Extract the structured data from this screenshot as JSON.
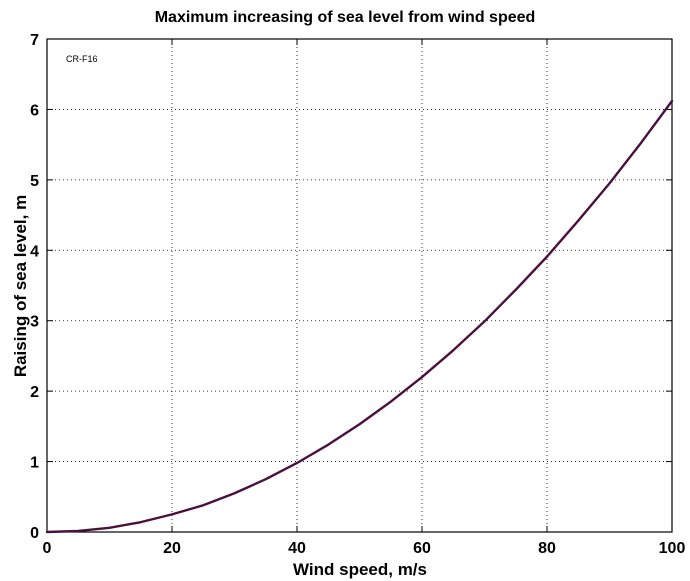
{
  "chart_data": {
    "type": "line",
    "title": "Maximum increasing of sea level from wind speed",
    "xlabel": "Wind speed, m/s",
    "ylabel": "Raising of sea level, m",
    "annotation": "CR-F16",
    "xlim": [
      0,
      100
    ],
    "ylim": [
      0,
      7
    ],
    "x_ticks": [
      0,
      20,
      40,
      60,
      80,
      100
    ],
    "y_ticks": [
      0,
      1,
      2,
      3,
      4,
      5,
      6,
      7
    ],
    "x_tick_labels": [
      "0",
      "20",
      "40",
      "60",
      "80",
      "100"
    ],
    "y_tick_labels": [
      "0",
      "1",
      "2",
      "3",
      "4",
      "5",
      "6",
      "7"
    ],
    "grid": true,
    "legend": "none",
    "series": [
      {
        "color": "#4a1040",
        "x": [
          0,
          5,
          10,
          15,
          20,
          25,
          30,
          35,
          40,
          45,
          50,
          55,
          60,
          65,
          70,
          75,
          80,
          85,
          90,
          95,
          100
        ],
        "y": [
          0,
          0.015,
          0.06,
          0.14,
          0.25,
          0.38,
          0.55,
          0.75,
          0.98,
          1.24,
          1.53,
          1.85,
          2.2,
          2.58,
          2.99,
          3.44,
          3.91,
          4.42,
          4.95,
          5.52,
          6.12
        ]
      }
    ]
  }
}
